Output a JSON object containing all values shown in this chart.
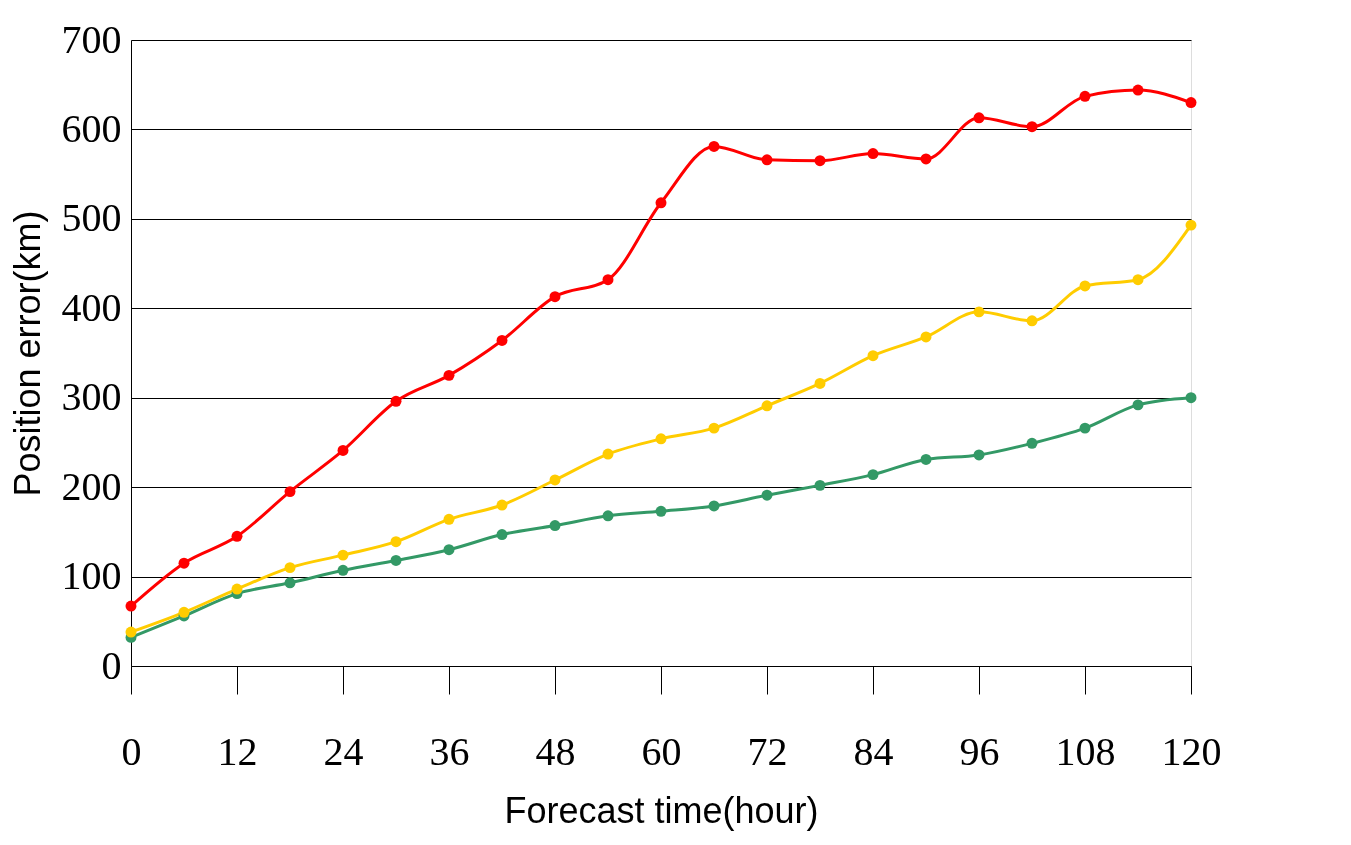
{
  "chart_data": {
    "type": "line",
    "xlabel": "Forecast time(hour)",
    "ylabel": "Position error(km)",
    "x": [
      0,
      6,
      12,
      18,
      24,
      30,
      36,
      42,
      48,
      54,
      60,
      66,
      72,
      78,
      84,
      90,
      96,
      102,
      108,
      114,
      120
    ],
    "xlim": [
      0,
      120
    ],
    "xticks": [
      0,
      12,
      24,
      36,
      48,
      60,
      72,
      84,
      96,
      108,
      120
    ],
    "ylim": [
      0,
      700
    ],
    "yticks": [
      0,
      100,
      200,
      300,
      400,
      500,
      600,
      700
    ],
    "grid": "y",
    "marker": "circle",
    "line_style": "solid",
    "legend": false,
    "series": [
      {
        "color": "#ff0000",
        "values": [
          67,
          115,
          145,
          195,
          241,
          296,
          325,
          364,
          413,
          432,
          518,
          581,
          566,
          565,
          573,
          567,
          613,
          603,
          637,
          644,
          630
        ]
      },
      {
        "color": "#ffcc00",
        "values": [
          38,
          60,
          86,
          110,
          124,
          139,
          164,
          180,
          208,
          237,
          254,
          266,
          291,
          316,
          347,
          368,
          396,
          386,
          425,
          432,
          493
        ]
      },
      {
        "color": "#339966",
        "values": [
          32,
          56,
          81,
          93,
          107,
          118,
          130,
          147,
          157,
          168,
          173,
          179,
          191,
          202,
          214,
          231,
          236,
          249,
          266,
          292,
          300
        ]
      }
    ]
  }
}
